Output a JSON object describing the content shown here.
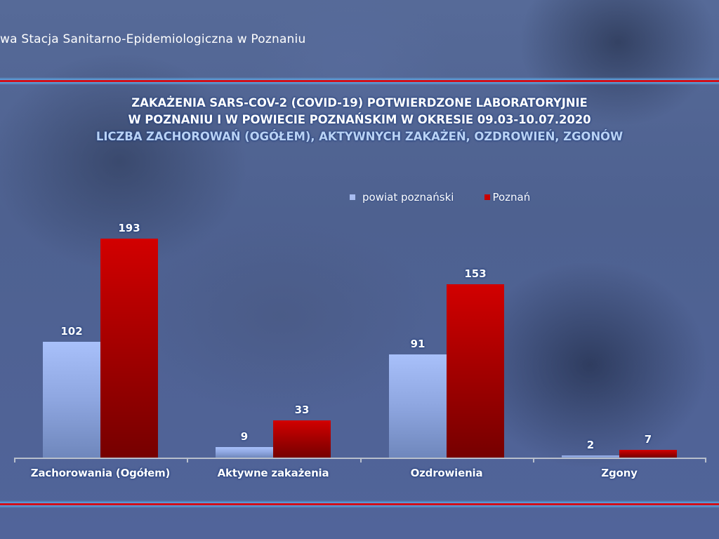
{
  "header": {
    "organization": "wa Stacja Sanitarno-Epidemiologiczna w Poznaniu"
  },
  "title": {
    "line1": "ZAKAŻENIA SARS-COV-2 (COVID-19) POTWIERDZONE LABORATORYJNIE",
    "line2": "W POZNANIU I W POWIECIE POZNAŃSKIM W OKRESIE 09.03-10.07.2020",
    "line3": "LICZBA ZACHOROWAŃ (OGÓŁEM), AKTYWNYCH ZAKAŻEŃ, OZDROWIEŃ, ZGONÓW"
  },
  "legend": {
    "items": [
      {
        "label": "powiat poznański",
        "color": "#a8bcf0"
      },
      {
        "label": "Poznań",
        "color": "#c80000"
      }
    ]
  },
  "colors": {
    "series_powiat": "#a8bcf0",
    "series_poznan": "#c80000",
    "rule_red": "#d0101a",
    "rule_blue": "#5aa0dc",
    "background": "#51649a"
  },
  "chart_data": {
    "type": "bar",
    "title": "ZAKAŻENIA SARS-COV-2 (COVID-19) POTWIERDZONE LABORATORYJNIE W POZNANIU I W POWIECIE POZNAŃSKIM W OKRESIE 09.03-10.07.2020",
    "subtitle": "LICZBA ZACHOROWAŃ (OGÓŁEM), AKTYWNYCH ZAKAŻEŃ, OZDROWIEŃ, ZGONÓW",
    "categories": [
      "Zachorowania (Ogółem)",
      "Aktywne zakażenia",
      "Ozdrowienia",
      "Zgony"
    ],
    "series": [
      {
        "name": "powiat poznański",
        "values": [
          102,
          9,
          91,
          2
        ],
        "labels": [
          "102",
          "9",
          "91",
          "2"
        ]
      },
      {
        "name": "Poznań",
        "values": [
          193,
          33,
          153,
          7
        ],
        "labels": [
          "193",
          "33",
          "153",
          "7"
        ]
      }
    ],
    "xlabel": "",
    "ylabel": "",
    "ylim": [
      0,
      200
    ],
    "grid": false,
    "y_axis_visible": false,
    "data_labels": true,
    "legend_position": "top-right"
  }
}
